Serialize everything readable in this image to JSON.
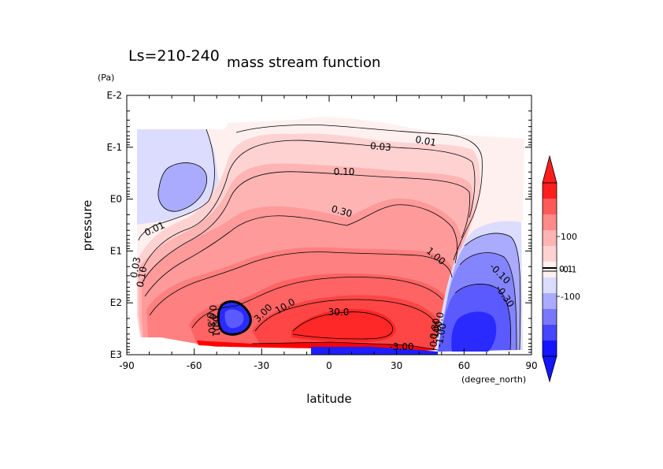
{
  "chart_data": {
    "type": "heatmap",
    "period_label": "Ls=210-240",
    "title": "mass stream function",
    "xlabel": "latitude",
    "xunit": "(degree_north)",
    "ylabel": "pressure",
    "yunit": "(Pa)",
    "x_range": [
      -90,
      90
    ],
    "y_range_log10": [
      -2,
      3
    ],
    "x_ticks": [
      "-90",
      "-60",
      "-30",
      "0",
      "30",
      "60",
      "90"
    ],
    "y_ticks": [
      "E-2",
      "E-1",
      "E0",
      "E1",
      "E2",
      "E3"
    ],
    "colorbar": {
      "ticks": [
        "100",
        "-100"
      ],
      "overlap_labels": [
        "0.1",
        "-0.1"
      ],
      "colors": [
        "#ff1e1e",
        "#ff5a5a",
        "#ff8a8a",
        "#ffb4b4",
        "#ffd2d2",
        "#fff0f0",
        "#dcdcff",
        "#aaaaff",
        "#7878ff",
        "#4646ff",
        "#1414ff"
      ]
    },
    "contour_labels": [
      "0.01",
      "0.03",
      "0.10",
      "0.30",
      "1.00",
      "3.00",
      "10.0",
      "30.0",
      "0.01",
      "0.03",
      "0.10",
      "0.30",
      "-0.10",
      "-0.30",
      "-3.00",
      "-0.30",
      "-10.0",
      "-0.10",
      "-1.00",
      "0.01",
      "0.03"
    ]
  }
}
